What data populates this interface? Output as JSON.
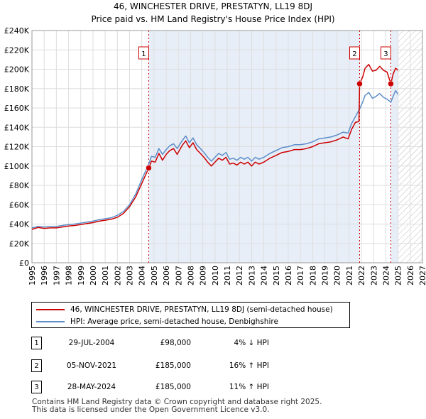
{
  "chart_data": {
    "type": "line",
    "title": "46, WINCHESTER DRIVE, PRESTATYN, LL19 8DJ",
    "subtitle": "Price paid vs. HM Land Registry's House Price Index (HPI)",
    "xlabel": "",
    "ylabel": "",
    "xlim": [
      1995,
      2027
    ],
    "ylim": [
      0,
      240000
    ],
    "x_ticks": [
      "1995",
      "1996",
      "1997",
      "1998",
      "1999",
      "2000",
      "2001",
      "2002",
      "2003",
      "2004",
      "2005",
      "2006",
      "2007",
      "2008",
      "2009",
      "2010",
      "2011",
      "2012",
      "2013",
      "2014",
      "2015",
      "2016",
      "2017",
      "2018",
      "2019",
      "2020",
      "2021",
      "2022",
      "2023",
      "2024",
      "2025",
      "2026",
      "2027"
    ],
    "y_ticks": [
      {
        "value": 0,
        "label": "£0"
      },
      {
        "value": 20000,
        "label": "£20K"
      },
      {
        "value": 40000,
        "label": "£40K"
      },
      {
        "value": 60000,
        "label": "£60K"
      },
      {
        "value": 80000,
        "label": "£80K"
      },
      {
        "value": 100000,
        "label": "£100K"
      },
      {
        "value": 120000,
        "label": "£120K"
      },
      {
        "value": 140000,
        "label": "£140K"
      },
      {
        "value": 160000,
        "label": "£160K"
      },
      {
        "value": 180000,
        "label": "£180K"
      },
      {
        "value": 200000,
        "label": "£200K"
      },
      {
        "value": 220000,
        "label": "£220K"
      },
      {
        "value": 240000,
        "label": "£240K"
      }
    ],
    "shaded_periods": [
      {
        "from": 2004.57,
        "to": 2021.85
      },
      {
        "from": 2024.41,
        "to": 2025.0
      }
    ],
    "hatched_region": {
      "from": 2025.0,
      "to": 2027
    },
    "series": [
      {
        "name": "46, WINCHESTER DRIVE, PRESTATYN, LL19 8DJ (semi-detached house)",
        "color": "#cc0000",
        "points": [
          [
            1995.0,
            34500
          ],
          [
            1995.5,
            36500
          ],
          [
            1996.0,
            35500
          ],
          [
            1996.5,
            36000
          ],
          [
            1997.0,
            36000
          ],
          [
            1997.5,
            37000
          ],
          [
            1998.0,
            38000
          ],
          [
            1998.5,
            38500
          ],
          [
            1999.0,
            39500
          ],
          [
            1999.5,
            40500
          ],
          [
            2000.0,
            41500
          ],
          [
            2000.5,
            43000
          ],
          [
            2001.0,
            44000
          ],
          [
            2001.5,
            45000
          ],
          [
            2002.0,
            47000
          ],
          [
            2002.5,
            51000
          ],
          [
            2003.0,
            58000
          ],
          [
            2003.5,
            68000
          ],
          [
            2004.0,
            82000
          ],
          [
            2004.57,
            98000
          ],
          [
            2004.8,
            105000
          ],
          [
            2005.1,
            104000
          ],
          [
            2005.4,
            113000
          ],
          [
            2005.7,
            106000
          ],
          [
            2006.0,
            112000
          ],
          [
            2006.3,
            116000
          ],
          [
            2006.6,
            118000
          ],
          [
            2006.9,
            112000
          ],
          [
            2007.3,
            121000
          ],
          [
            2007.6,
            126000
          ],
          [
            2007.9,
            119000
          ],
          [
            2008.2,
            124000
          ],
          [
            2008.5,
            117000
          ],
          [
            2008.8,
            113000
          ],
          [
            2009.1,
            109000
          ],
          [
            2009.4,
            104000
          ],
          [
            2009.7,
            100000
          ],
          [
            2010.0,
            104000
          ],
          [
            2010.3,
            108000
          ],
          [
            2010.6,
            106000
          ],
          [
            2010.9,
            109000
          ],
          [
            2011.2,
            102000
          ],
          [
            2011.5,
            103000
          ],
          [
            2011.8,
            101000
          ],
          [
            2012.1,
            104000
          ],
          [
            2012.4,
            102000
          ],
          [
            2012.7,
            104000
          ],
          [
            2013.0,
            100000
          ],
          [
            2013.3,
            104000
          ],
          [
            2013.6,
            102000
          ],
          [
            2014.0,
            104000
          ],
          [
            2014.5,
            108000
          ],
          [
            2015.0,
            111000
          ],
          [
            2015.5,
            114000
          ],
          [
            2016.0,
            115000
          ],
          [
            2016.5,
            117000
          ],
          [
            2017.0,
            117000
          ],
          [
            2017.5,
            118000
          ],
          [
            2018.0,
            120000
          ],
          [
            2018.5,
            123000
          ],
          [
            2019.0,
            124000
          ],
          [
            2019.5,
            125000
          ],
          [
            2020.0,
            127000
          ],
          [
            2020.5,
            130000
          ],
          [
            2020.9,
            128000
          ],
          [
            2021.2,
            138000
          ],
          [
            2021.5,
            145000
          ],
          [
            2021.8,
            146000
          ],
          [
            2021.85,
            185000
          ],
          [
            2022.1,
            192000
          ],
          [
            2022.3,
            201000
          ],
          [
            2022.6,
            205000
          ],
          [
            2022.9,
            198000
          ],
          [
            2023.2,
            199000
          ],
          [
            2023.5,
            203000
          ],
          [
            2023.8,
            199000
          ],
          [
            2024.1,
            197000
          ],
          [
            2024.41,
            185000
          ],
          [
            2024.6,
            195000
          ],
          [
            2024.8,
            201000
          ],
          [
            2025.0,
            199000
          ]
        ]
      },
      {
        "name": "HPI: Average price, semi-detached house, Denbighshire",
        "color": "#5b8ec9",
        "points": [
          [
            1995.0,
            36000
          ],
          [
            1995.5,
            37500
          ],
          [
            1996.0,
            37000
          ],
          [
            1996.5,
            37500
          ],
          [
            1997.0,
            37500
          ],
          [
            1997.5,
            38500
          ],
          [
            1998.0,
            39500
          ],
          [
            1998.5,
            40000
          ],
          [
            1999.0,
            41000
          ],
          [
            1999.5,
            42000
          ],
          [
            2000.0,
            43000
          ],
          [
            2000.5,
            44500
          ],
          [
            2001.0,
            45500
          ],
          [
            2001.5,
            46500
          ],
          [
            2002.0,
            49000
          ],
          [
            2002.5,
            53000
          ],
          [
            2003.0,
            60000
          ],
          [
            2003.5,
            71000
          ],
          [
            2004.0,
            86000
          ],
          [
            2004.57,
            102000
          ],
          [
            2004.8,
            110000
          ],
          [
            2005.1,
            109000
          ],
          [
            2005.4,
            118000
          ],
          [
            2005.7,
            112000
          ],
          [
            2006.0,
            117000
          ],
          [
            2006.3,
            121000
          ],
          [
            2006.6,
            123000
          ],
          [
            2006.9,
            118000
          ],
          [
            2007.3,
            126000
          ],
          [
            2007.6,
            131000
          ],
          [
            2007.9,
            124000
          ],
          [
            2008.2,
            129000
          ],
          [
            2008.5,
            122000
          ],
          [
            2008.8,
            118000
          ],
          [
            2009.1,
            114000
          ],
          [
            2009.4,
            109000
          ],
          [
            2009.7,
            105000
          ],
          [
            2010.0,
            109000
          ],
          [
            2010.3,
            113000
          ],
          [
            2010.6,
            111000
          ],
          [
            2010.9,
            114000
          ],
          [
            2011.2,
            107000
          ],
          [
            2011.5,
            108000
          ],
          [
            2011.8,
            106000
          ],
          [
            2012.1,
            109000
          ],
          [
            2012.4,
            107000
          ],
          [
            2012.7,
            109000
          ],
          [
            2013.0,
            105000
          ],
          [
            2013.3,
            109000
          ],
          [
            2013.6,
            107000
          ],
          [
            2014.0,
            109000
          ],
          [
            2014.5,
            113000
          ],
          [
            2015.0,
            116000
          ],
          [
            2015.5,
            119000
          ],
          [
            2016.0,
            120000
          ],
          [
            2016.5,
            122000
          ],
          [
            2017.0,
            122000
          ],
          [
            2017.5,
            123000
          ],
          [
            2018.0,
            125000
          ],
          [
            2018.5,
            128000
          ],
          [
            2019.0,
            129000
          ],
          [
            2019.5,
            130000
          ],
          [
            2020.0,
            132000
          ],
          [
            2020.5,
            135000
          ],
          [
            2020.9,
            134000
          ],
          [
            2021.2,
            144000
          ],
          [
            2021.5,
            151000
          ],
          [
            2021.85,
            159000
          ],
          [
            2022.1,
            166000
          ],
          [
            2022.3,
            173000
          ],
          [
            2022.6,
            176000
          ],
          [
            2022.9,
            170000
          ],
          [
            2023.2,
            172000
          ],
          [
            2023.5,
            175000
          ],
          [
            2023.8,
            171000
          ],
          [
            2024.1,
            169000
          ],
          [
            2024.41,
            166000
          ],
          [
            2024.6,
            172000
          ],
          [
            2024.8,
            178000
          ],
          [
            2025.0,
            174000
          ]
        ]
      }
    ],
    "markers": [
      {
        "label": "1",
        "x": 2004.57,
        "y": 98000
      },
      {
        "label": "2",
        "x": 2021.85,
        "y": 185000
      },
      {
        "label": "3",
        "x": 2024.41,
        "y": 185000
      }
    ]
  },
  "legend": {
    "items": [
      {
        "label": "46, WINCHESTER DRIVE, PRESTATYN, LL19 8DJ (semi-detached house)",
        "color": "#cc0000"
      },
      {
        "label": "HPI: Average price, semi-detached house, Denbighshire",
        "color": "#5b8ec9"
      }
    ]
  },
  "transactions": [
    {
      "num": "1",
      "date": "29-JUL-2004",
      "price": "£98,000",
      "hpi": "4% ↓ HPI"
    },
    {
      "num": "2",
      "date": "05-NOV-2021",
      "price": "£185,000",
      "hpi": "16% ↑ HPI"
    },
    {
      "num": "3",
      "date": "28-MAY-2024",
      "price": "£185,000",
      "hpi": "11% ↑ HPI"
    }
  ],
  "footer": {
    "line1": "Contains HM Land Registry data © Crown copyright and database right 2025.",
    "line2": "This data is licensed under the Open Government Licence v3.0."
  }
}
